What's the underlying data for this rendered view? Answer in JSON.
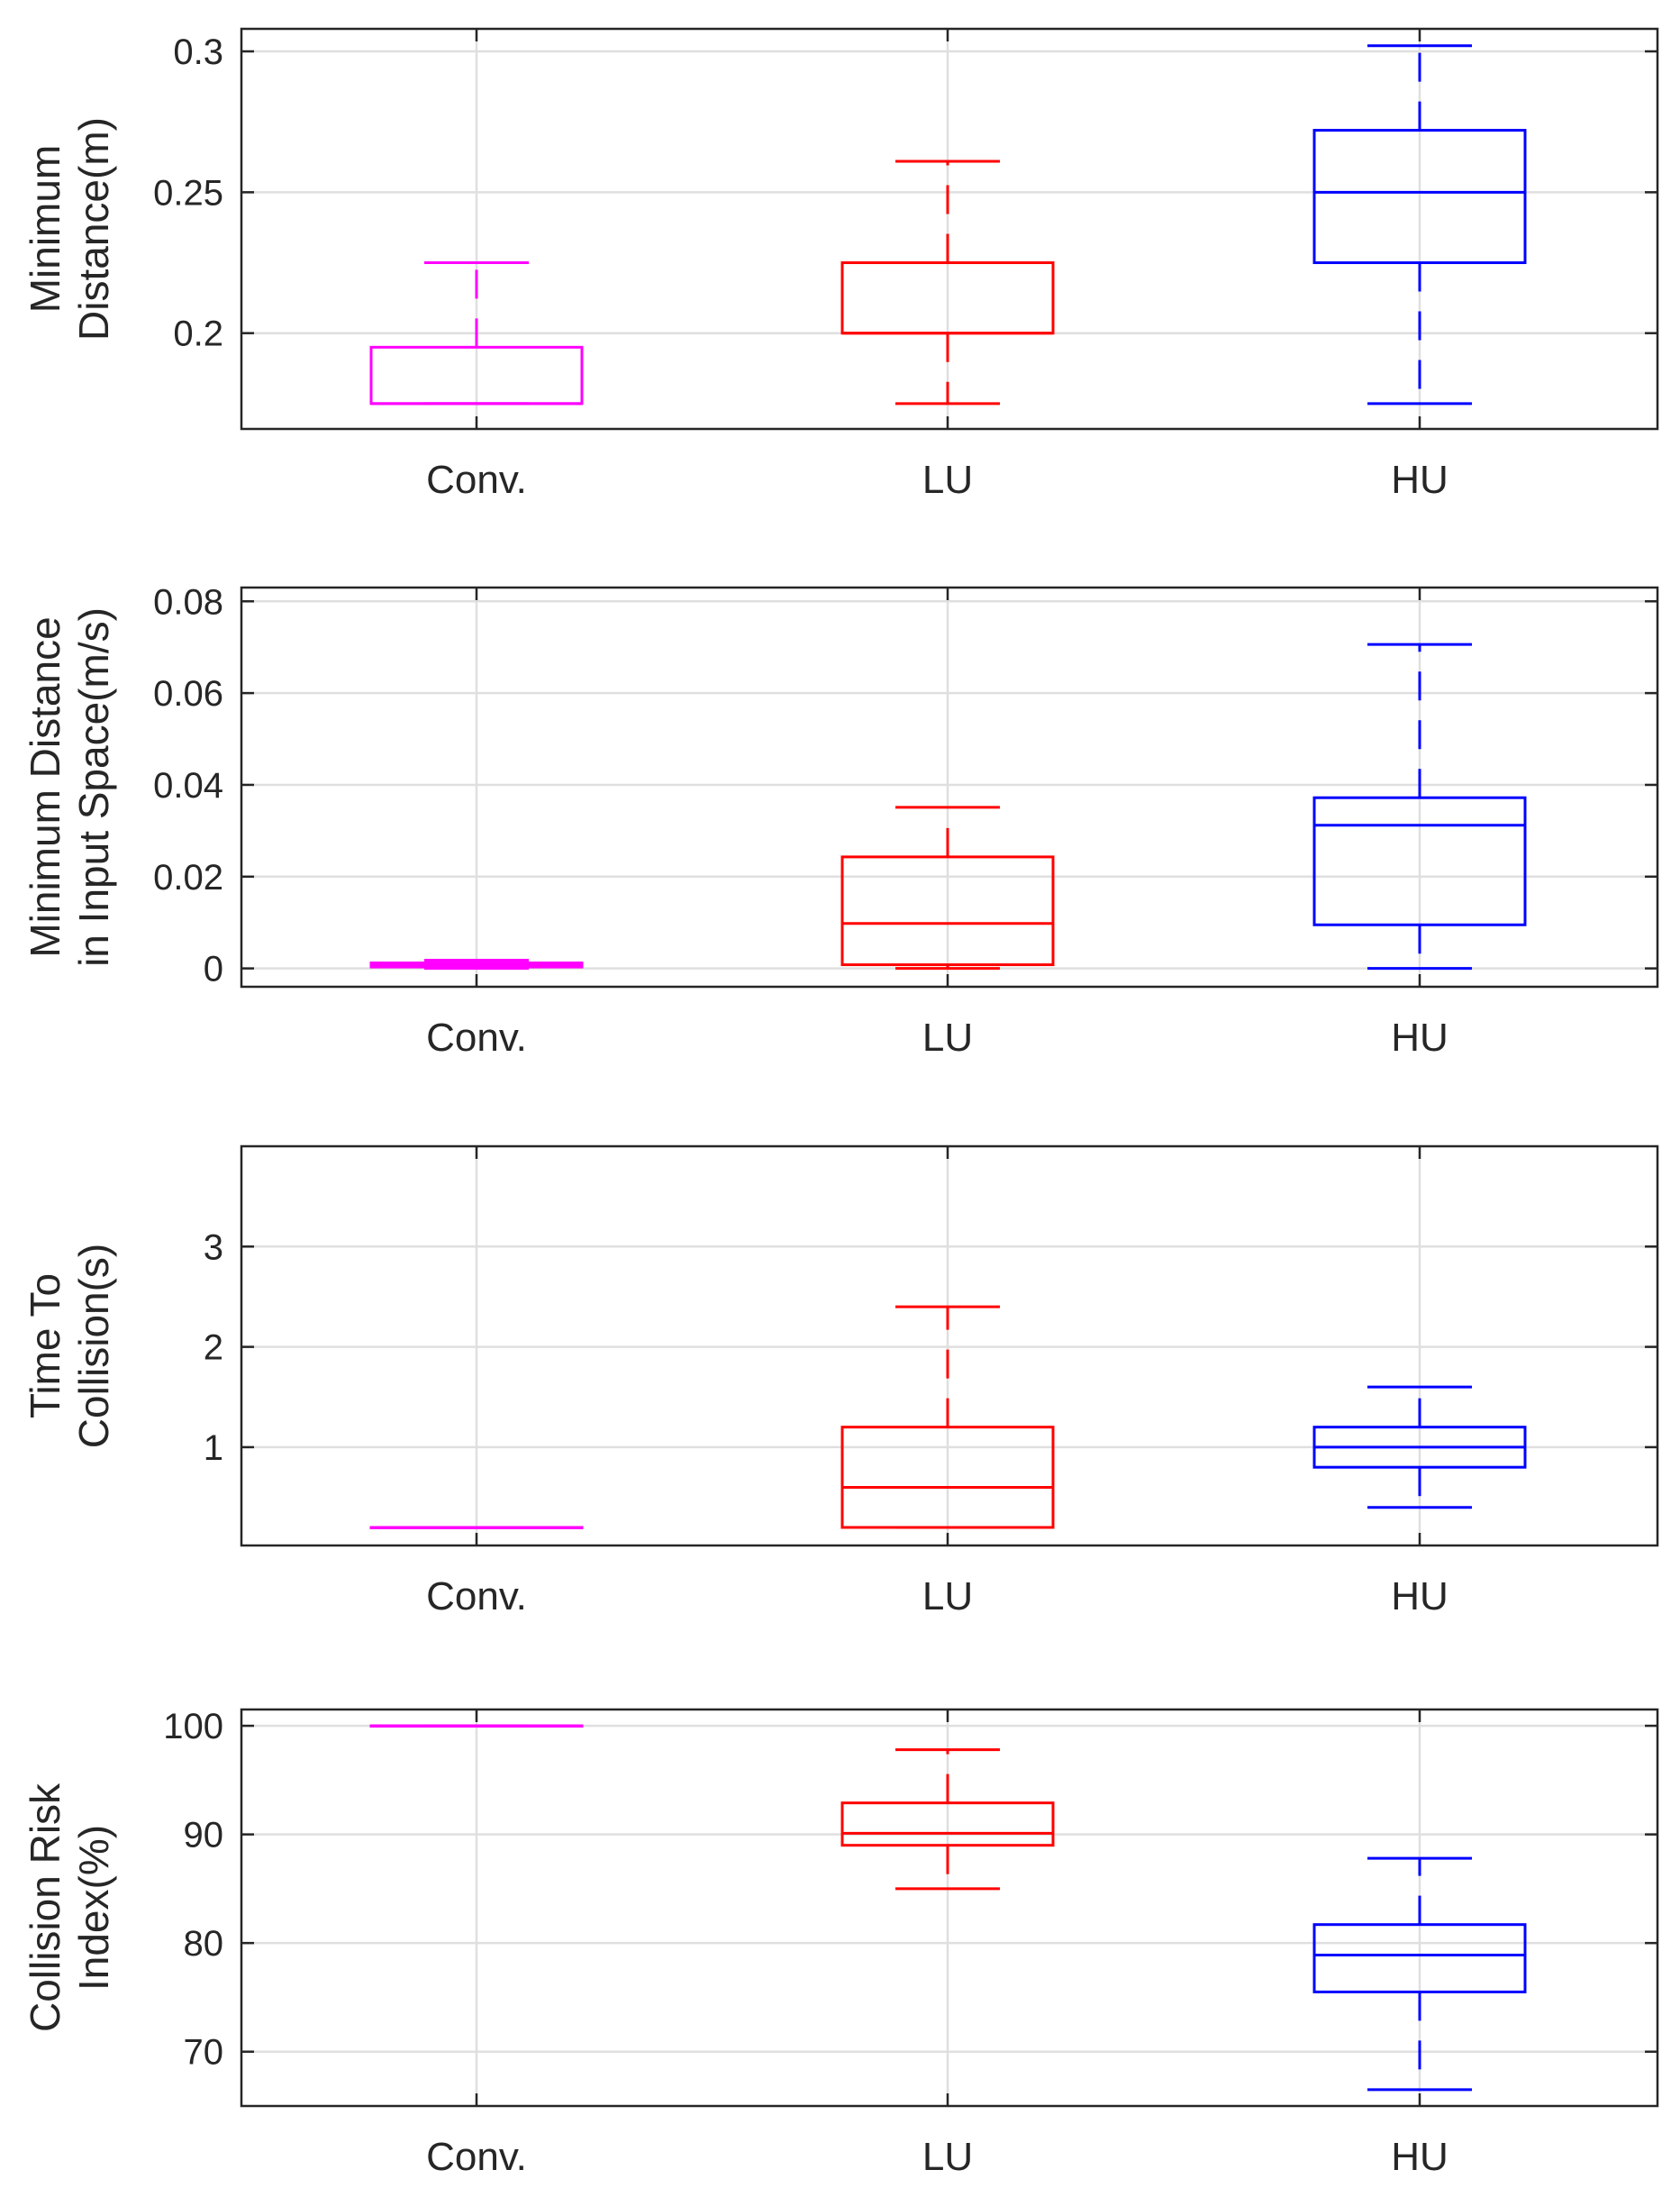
{
  "colors": {
    "conv": "#ff00ff",
    "lu": "#ff0000",
    "hu": "#0000ff",
    "grid": "#dfdfdf",
    "axis": "#262626"
  },
  "chart_data": [
    {
      "type": "box",
      "ylabel": [
        "Minimum",
        "Distance(m)"
      ],
      "ylim": [
        0.166,
        0.308
      ],
      "yticks": [
        0.2,
        0.25,
        0.3
      ],
      "ytick_labels": [
        "0.2",
        "0.25",
        "0.3"
      ],
      "grid": true,
      "categories": [
        "Conv.",
        "LU",
        "HU"
      ],
      "series": [
        {
          "name": "Conv.",
          "whisker_low": 0.175,
          "q1": 0.175,
          "median": 0.175,
          "q3": 0.195,
          "whisker_high": 0.225
        },
        {
          "name": "LU",
          "whisker_low": 0.175,
          "q1": 0.2,
          "median": 0.2,
          "q3": 0.225,
          "whisker_high": 0.261
        },
        {
          "name": "HU",
          "whisker_low": 0.175,
          "q1": 0.225,
          "median": 0.25,
          "q3": 0.272,
          "whisker_high": 0.302
        }
      ]
    },
    {
      "type": "box",
      "ylabel": [
        "Minimum Distance",
        "in Input Space(m/s)"
      ],
      "ylim": [
        -0.004,
        0.083
      ],
      "yticks": [
        0,
        0.02,
        0.04,
        0.06,
        0.08
      ],
      "ytick_labels": [
        "0",
        "0.02",
        "0.04",
        "0.06",
        "0.08"
      ],
      "grid": true,
      "categories": [
        "Conv.",
        "LU",
        "HU"
      ],
      "series": [
        {
          "name": "Conv.",
          "whisker_low": 0,
          "q1": 0.0003,
          "median": 0.0008,
          "q3": 0.0012,
          "whisker_high": 0.0018
        },
        {
          "name": "LU",
          "whisker_low": 0,
          "q1": 0.0008,
          "median": 0.0098,
          "q3": 0.0243,
          "whisker_high": 0.0351
        },
        {
          "name": "HU",
          "whisker_low": 0,
          "q1": 0.0095,
          "median": 0.0312,
          "q3": 0.0372,
          "whisker_high": 0.0706
        }
      ]
    },
    {
      "type": "box",
      "ylabel": [
        "Time To",
        "Collision(s)"
      ],
      "ylim": [
        0.02,
        4
      ],
      "yticks": [
        1,
        2,
        3
      ],
      "ytick_labels": [
        "1",
        "2",
        "3"
      ],
      "grid": true,
      "categories": [
        "Conv.",
        "LU",
        "HU"
      ],
      "series": [
        {
          "name": "Conv.",
          "whisker_low": 0.2,
          "q1": 0.2,
          "median": 0.2,
          "q3": 0.2,
          "whisker_high": 0.2
        },
        {
          "name": "LU",
          "whisker_low": 0.2,
          "q1": 0.2,
          "median": 0.6,
          "q3": 1.2,
          "whisker_high": 2.4
        },
        {
          "name": "HU",
          "whisker_low": 0.4,
          "q1": 0.8,
          "median": 1.0,
          "q3": 1.2,
          "whisker_high": 1.6
        }
      ]
    },
    {
      "type": "box",
      "ylabel": [
        "Collision Risk",
        "Index(%)"
      ],
      "ylim": [
        65,
        101.5
      ],
      "yticks": [
        70,
        80,
        90,
        100
      ],
      "ytick_labels": [
        "70",
        "80",
        "90",
        "100"
      ],
      "grid": true,
      "categories": [
        "Conv.",
        "LU",
        "HU"
      ],
      "series": [
        {
          "name": "Conv.",
          "whisker_low": 100,
          "q1": 100,
          "median": 100,
          "q3": 100,
          "whisker_high": 100
        },
        {
          "name": "LU",
          "whisker_low": 85,
          "q1": 89,
          "median": 90.1,
          "q3": 92.9,
          "whisker_high": 97.8
        },
        {
          "name": "HU",
          "whisker_low": 66.5,
          "q1": 75.5,
          "median": 78.9,
          "q3": 81.7,
          "whisker_high": 87.8
        }
      ]
    }
  ]
}
